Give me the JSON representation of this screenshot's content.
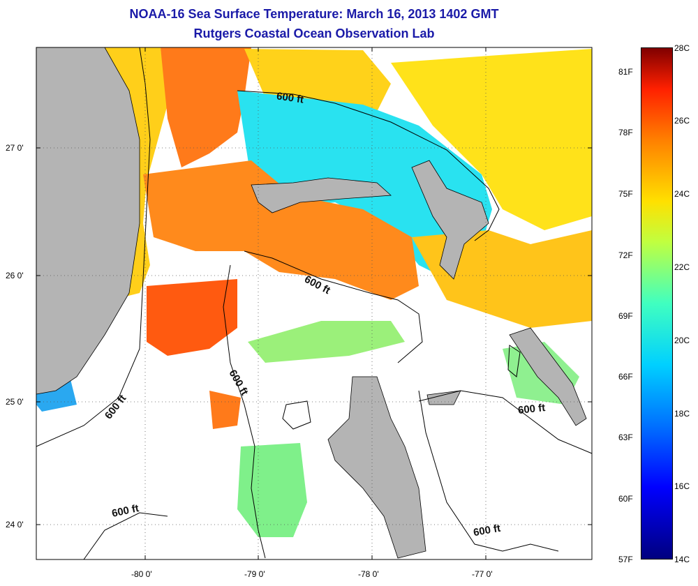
{
  "title": {
    "line1": "NOAA-16 Sea Surface Temperature:  March 16, 2013 1402 GMT",
    "line2": "Rutgers Coastal Ocean Observation Lab"
  },
  "map": {
    "lat_labels": [
      "27 0'",
      "26 0'",
      "25 0'",
      "24 0'"
    ],
    "lon_labels": [
      "-80 0'",
      "-79 0'",
      "-78 0'",
      "-77 0'"
    ],
    "contour_label": "600 ft",
    "colors": {
      "land": "#b4b4b4",
      "ocean_missing": "#ffffff",
      "cold": "#00b8e8",
      "warm": "#ff7a1a",
      "mid": "#ffd21a"
    }
  },
  "colorbar": {
    "f_labels": [
      "81F",
      "78F",
      "75F",
      "72F",
      "69F",
      "66F",
      "63F",
      "60F",
      "57F"
    ],
    "c_labels": [
      "28C",
      "26C",
      "24C",
      "22C",
      "20C",
      "18C",
      "16C",
      "14C"
    ]
  }
}
